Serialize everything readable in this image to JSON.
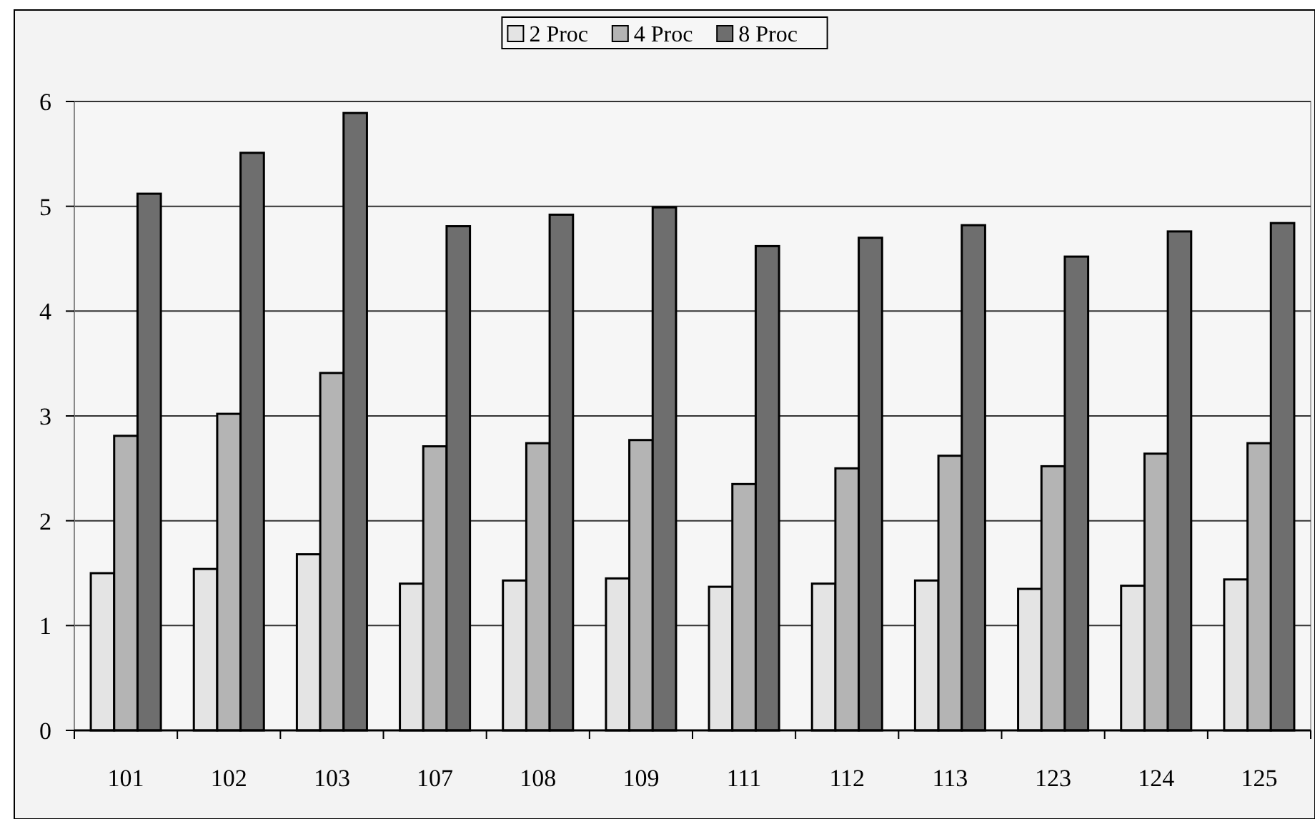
{
  "chart_data": {
    "type": "bar",
    "categories": [
      "101",
      "102",
      "103",
      "107",
      "108",
      "109",
      "111",
      "112",
      "113",
      "123",
      "124",
      "125"
    ],
    "series": [
      {
        "name": "2 Proc",
        "color": "#e4e4e4",
        "values": [
          1.5,
          1.54,
          1.68,
          1.4,
          1.43,
          1.45,
          1.37,
          1.4,
          1.43,
          1.35,
          1.38,
          1.44
        ]
      },
      {
        "name": "4 Proc",
        "color": "#b4b4b4",
        "values": [
          2.81,
          3.02,
          3.41,
          2.71,
          2.74,
          2.77,
          2.35,
          2.5,
          2.62,
          2.52,
          2.64,
          2.74
        ]
      },
      {
        "name": "8 Proc",
        "color": "#6e6e6e",
        "values": [
          5.12,
          5.51,
          5.89,
          4.81,
          4.92,
          4.99,
          4.62,
          4.7,
          4.82,
          4.52,
          4.76,
          4.84
        ]
      }
    ],
    "ylim": [
      0,
      6
    ],
    "yticks": [
      0,
      1,
      2,
      3,
      4,
      5,
      6
    ],
    "grid": "y",
    "legend": "top"
  }
}
